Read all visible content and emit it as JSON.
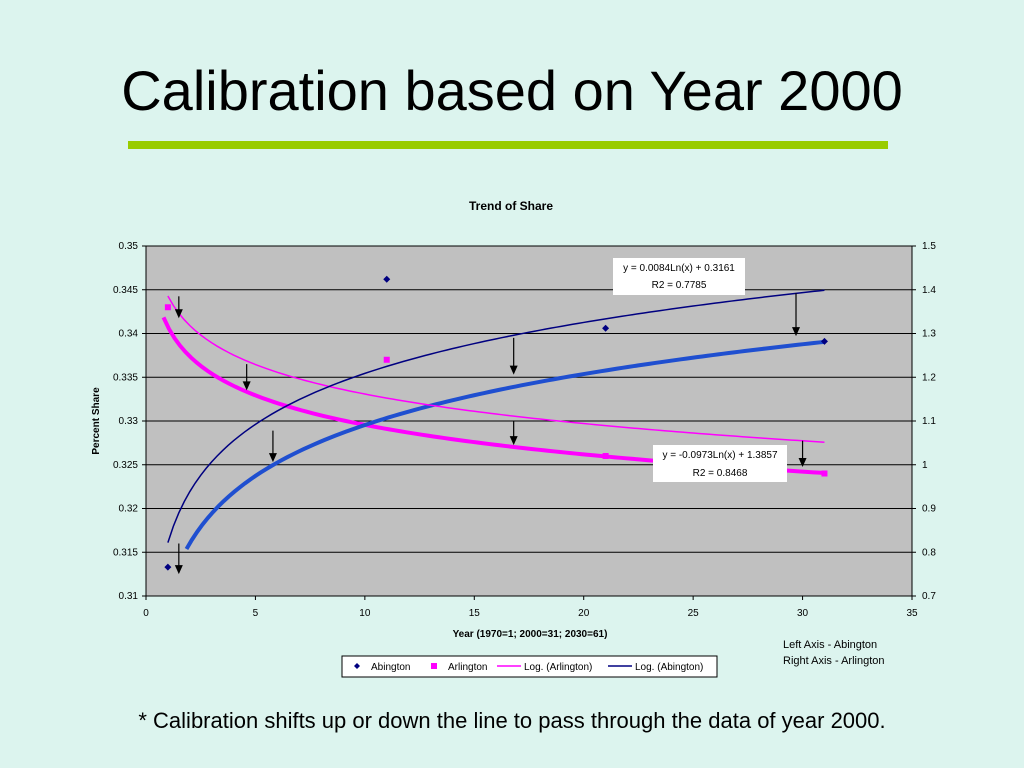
{
  "slide": {
    "title": "Calibration based on Year 2000",
    "caption": "* Calibration shifts up or down the line to pass through the data of year 2000.",
    "axis_notes": [
      "Left Axis - Abington",
      "Right Axis - Arlington"
    ],
    "accent_color": "#99cc00",
    "background_color": "#dcf4ee"
  },
  "chart_data": {
    "type": "scatter",
    "title": "Trend of Share",
    "xlabel": "Year (1970=1; 2000=31; 2030=61)",
    "ylabel": "Percent Share",
    "xlim": [
      0,
      35
    ],
    "ylim": [
      0.31,
      0.35
    ],
    "y2lim": [
      0.7,
      1.5
    ],
    "x_ticks": [
      0,
      5,
      10,
      15,
      20,
      25,
      30,
      35
    ],
    "y_ticks": [
      0.31,
      0.315,
      0.32,
      0.325,
      0.33,
      0.335,
      0.34,
      0.345,
      0.35
    ],
    "y2_ticks": [
      0.7,
      0.8,
      0.9,
      1,
      1.1,
      1.2,
      1.3,
      1.4,
      1.5
    ],
    "grid": "horizontal",
    "plot_background": "#c0c0c0",
    "legend_position": "bottom",
    "series": [
      {
        "name": "Abington",
        "marker": "diamond",
        "axis": "left",
        "color": "#000080",
        "x": [
          1,
          11,
          21,
          31
        ],
        "y": [
          0.3133,
          0.3462,
          0.3406,
          0.3391
        ]
      },
      {
        "name": "Arlington",
        "marker": "square",
        "axis": "right",
        "color": "#ff00ff",
        "x": [
          1,
          11,
          21,
          31
        ],
        "y": [
          1.36,
          1.24,
          1.02,
          0.98
        ]
      },
      {
        "name": "Log. (Arlington)",
        "type": "line",
        "axis": "right",
        "color": "#ff00ff",
        "equation": "y = -0.0973Ln(x) + 1.3857",
        "r2": "R2 = 0.8468",
        "fit": {
          "a": -0.0973,
          "b": 1.3857
        },
        "x_range": [
          1,
          31
        ]
      },
      {
        "name": "Log. (Abington)",
        "type": "line",
        "axis": "left",
        "color": "#000080",
        "equation": "y = 0.0084Ln(x) + 0.3161",
        "r2": "R2 = 0.7785",
        "fit": {
          "a": 0.0084,
          "b": 0.3161
        },
        "x_range": [
          1,
          31
        ]
      }
    ],
    "calibrated_lines": [
      {
        "name": "Calibrated Arlington",
        "axis": "right",
        "color": "#ff00ff",
        "fit": {
          "a": -0.0973,
          "b": 1.3152
        },
        "x_range": [
          0.8,
          31
        ]
      },
      {
        "name": "Calibrated Abington",
        "axis": "left",
        "color": "#1f4fd0",
        "fit": {
          "a": 0.0084,
          "b": 0.3102
        },
        "x_range": [
          1.85,
          31
        ]
      }
    ],
    "shift_arrows": [
      {
        "axis": "left",
        "x": 1.5,
        "from": 0.316,
        "to": 0.3125
      },
      {
        "axis": "left",
        "x": 5.8,
        "from": 0.3289,
        "to": 0.3253
      },
      {
        "axis": "left",
        "x": 16.8,
        "from": 0.3395,
        "to": 0.3353
      },
      {
        "axis": "left",
        "x": 29.7,
        "from": 0.3446,
        "to": 0.3397
      },
      {
        "axis": "right",
        "x": 1.5,
        "from": 1.385,
        "to": 1.335
      },
      {
        "axis": "right",
        "x": 4.6,
        "from": 1.23,
        "to": 1.17
      },
      {
        "axis": "right",
        "x": 16.8,
        "from": 1.1,
        "to": 1.045
      },
      {
        "axis": "right",
        "x": 30.0,
        "from": 1.055,
        "to": 0.995
      }
    ]
  }
}
